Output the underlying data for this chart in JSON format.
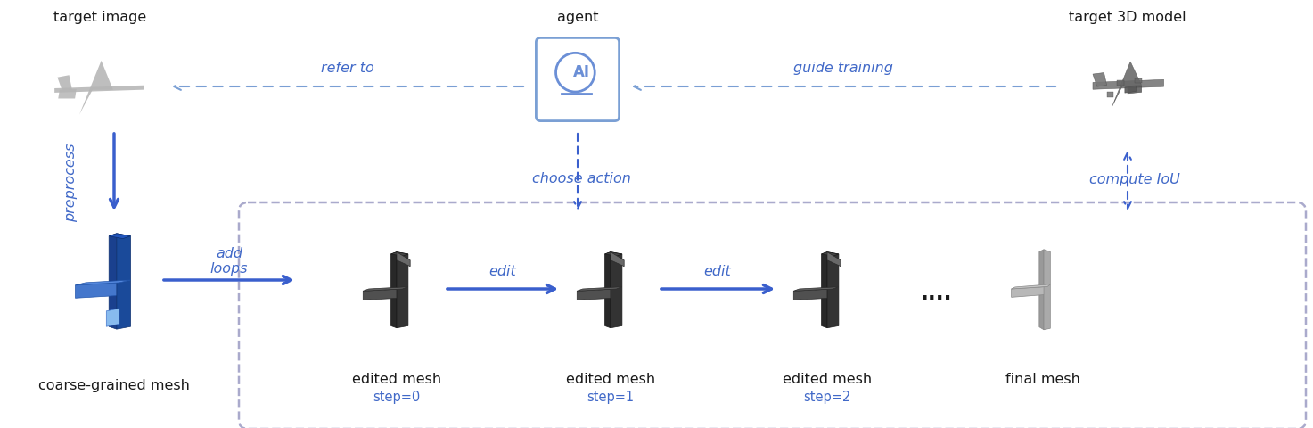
{
  "bg_color": "#ffffff",
  "blue_dark": "#3a5fcd",
  "blue_medium": "#6b8fd6",
  "blue_light": "#8aaee8",
  "text_color_black": "#1a1a1a",
  "text_color_blue": "#4169c8",
  "dashed_blue": "#7a9fd4",
  "labels": {
    "target_image": "target image",
    "agent": "agent",
    "target_3d": "target 3D model",
    "refer_to": "refer to",
    "guide_training": "guide training",
    "choose_action": "choose action",
    "compute_iou": "compute IoU",
    "preprocess": "preprocess",
    "add_loops": "add\nloops",
    "coarse_grained": "coarse-grained mesh",
    "edited_mesh": "edited mesh",
    "step0": "step=0",
    "step1": "step=1",
    "step2": "step=2",
    "final_mesh": "final mesh",
    "edit1": "edit",
    "edit2": "edit",
    "dots": "....",
    "box_label": ""
  },
  "figsize": [
    14.73,
    4.81
  ],
  "dpi": 100
}
